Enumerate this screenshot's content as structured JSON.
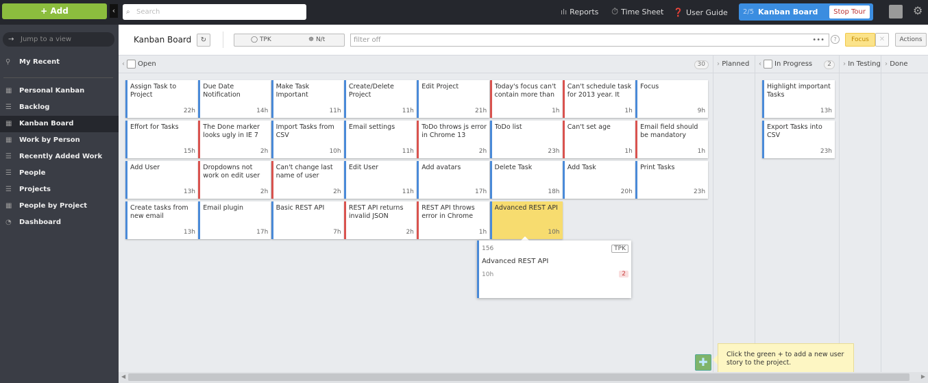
{
  "topbar": {
    "add_label": "+ Add",
    "search_placeholder": "Search",
    "reports": "Reports",
    "timesheet": "Time Sheet",
    "user_guide": "User Guide",
    "tour": {
      "step": "2/5",
      "title": "Kanban Board",
      "stop": "Stop Tour"
    }
  },
  "sidebar": {
    "jump_placeholder": "Jump to a view",
    "my_recent": "My Recent",
    "items": [
      {
        "label": "Personal Kanban",
        "icon": "board-icon"
      },
      {
        "label": "Backlog",
        "icon": "list-icon"
      },
      {
        "label": "Kanban Board",
        "icon": "board-icon",
        "active": true
      },
      {
        "label": "Work by Person",
        "icon": "board-icon"
      },
      {
        "label": "Recently Added Work",
        "icon": "list-icon"
      },
      {
        "label": "People",
        "icon": "list-icon"
      },
      {
        "label": "Projects",
        "icon": "list-icon"
      },
      {
        "label": "People by Project",
        "icon": "board-icon"
      },
      {
        "label": "Dashboard",
        "icon": "dashboard-icon"
      }
    ]
  },
  "header": {
    "title": "Kanban Board",
    "project": "TPK",
    "user": "N/t",
    "filter": "filter off",
    "focus": "Focus",
    "actions": "Actions"
  },
  "columns": {
    "open": {
      "label": "Open",
      "count": "30"
    },
    "planned": {
      "label": "Planned"
    },
    "in_progress": {
      "label": "In Progress",
      "count": "2"
    },
    "in_testing": {
      "label": "In Testing"
    },
    "done": {
      "label": "Done"
    }
  },
  "colors": {
    "story": "#4a8ad8",
    "bug": "#d9534f",
    "highlight": "#f7dc6f",
    "add": "#8cbd3e"
  },
  "open_cards": [
    {
      "title": "Assign Task to Project",
      "hours": "22h",
      "type": "story"
    },
    {
      "title": "Due Date Notification",
      "hours": "14h",
      "type": "story"
    },
    {
      "title": "Make Task Important",
      "hours": "11h",
      "type": "story"
    },
    {
      "title": "Create/Delete Project",
      "hours": "11h",
      "type": "story"
    },
    {
      "title": "Edit Project",
      "hours": "21h",
      "type": "story"
    },
    {
      "title": "Today's focus can't contain more than",
      "hours": "1h",
      "type": "bug"
    },
    {
      "title": "Can't schedule task for 2013 year. It",
      "hours": "1h",
      "type": "bug"
    },
    {
      "title": "Focus",
      "hours": "9h",
      "type": "story"
    },
    {
      "title": "Effort for Tasks",
      "hours": "15h",
      "type": "story"
    },
    {
      "title": "The Done marker looks ugly in IE 7",
      "hours": "2h",
      "type": "bug"
    },
    {
      "title": "Import Tasks from CSV",
      "hours": "10h",
      "type": "story"
    },
    {
      "title": "Email settings",
      "hours": "11h",
      "type": "story"
    },
    {
      "title": "ToDo throws js error in Chrome 13",
      "hours": "2h",
      "type": "bug"
    },
    {
      "title": "ToDo list",
      "hours": "23h",
      "type": "story"
    },
    {
      "title": "Can't set age",
      "hours": "1h",
      "type": "bug"
    },
    {
      "title": "Email field should be mandatory",
      "hours": "1h",
      "type": "bug"
    },
    {
      "title": "Add User",
      "hours": "13h",
      "type": "story"
    },
    {
      "title": "Dropdowns not work on edit user",
      "hours": "2h",
      "type": "bug"
    },
    {
      "title": "Can't change last name of user",
      "hours": "2h",
      "type": "bug"
    },
    {
      "title": "Edit User",
      "hours": "11h",
      "type": "story"
    },
    {
      "title": "Add avatars",
      "hours": "17h",
      "type": "story"
    },
    {
      "title": "Delete Task",
      "hours": "18h",
      "type": "story"
    },
    {
      "title": "Add Task",
      "hours": "20h",
      "type": "story"
    },
    {
      "title": "Print Tasks",
      "hours": "23h",
      "type": "story"
    },
    {
      "title": "Create tasks from new email",
      "hours": "13h",
      "type": "story"
    },
    {
      "title": "Email plugin",
      "hours": "17h",
      "type": "story"
    },
    {
      "title": "Basic REST API",
      "hours": "7h",
      "type": "story"
    },
    {
      "title": "REST API returns invalid JSON",
      "hours": "2h",
      "type": "bug"
    },
    {
      "title": "REST API throws error in Chrome",
      "hours": "1h",
      "type": "bug"
    },
    {
      "title": "Advanced REST API",
      "hours": "10h",
      "type": "story",
      "highlighted": true
    }
  ],
  "progress_cards": [
    {
      "title": "Highlight important Tasks",
      "hours": "13h"
    },
    {
      "title": "Export Tasks into CSV",
      "hours": "23h"
    }
  ],
  "popup": {
    "id": "156",
    "project": "TPK",
    "title": "Advanced REST API",
    "hours": "10h",
    "badge": "2"
  },
  "tip": "Click the green + to add a new user story to the project."
}
